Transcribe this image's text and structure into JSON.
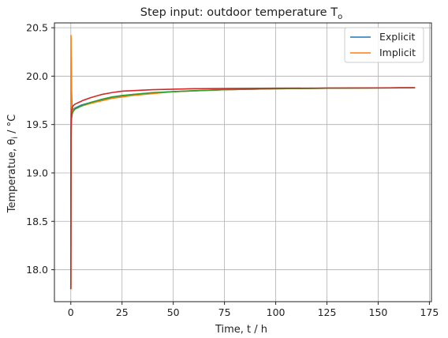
{
  "chart_data": {
    "type": "line",
    "title": "Step input: outdoor temperature T",
    "title_subscript": "o",
    "xlabel": "Time, t / h",
    "ylabel": "Temperatue, θ",
    "ylabel_subscript": "i",
    "ylabel_unit": " / °C",
    "xlim": [
      -8,
      176
    ],
    "ylim": [
      17.67,
      20.55
    ],
    "xticks": [
      0,
      25,
      50,
      75,
      100,
      125,
      150,
      175
    ],
    "yticks": [
      18.0,
      18.5,
      19.0,
      19.5,
      20.0,
      20.5
    ],
    "xtick_labels": [
      "0",
      "25",
      "50",
      "75",
      "100",
      "125",
      "150",
      "175"
    ],
    "ytick_labels": [
      "18.0",
      "18.5",
      "19.0",
      "19.5",
      "20.0",
      "20.5"
    ],
    "grid": true,
    "legend": {
      "placement": "top-right",
      "entries": [
        {
          "label": "Explicit",
          "color": "#1f77b4"
        },
        {
          "label": "Implicit",
          "color": "#ff7f0e"
        }
      ]
    },
    "series": [
      {
        "name": "Explicit",
        "color": "#1f77b4",
        "x": [
          0,
          0.05,
          0.1,
          0.2,
          0.3,
          0.5,
          0.7,
          1,
          1.5,
          2,
          5,
          10,
          20,
          30,
          50,
          75,
          100,
          125,
          150,
          168
        ],
        "y": [
          17.8,
          18.9,
          19.6,
          20.2,
          19.9,
          19.75,
          19.68,
          19.65,
          19.66,
          19.67,
          19.7,
          19.73,
          19.78,
          19.81,
          19.84,
          19.86,
          19.87,
          19.875,
          19.878,
          19.88
        ]
      },
      {
        "name": "Implicit",
        "color": "#ff7f0e",
        "x": [
          0,
          0.05,
          0.1,
          0.2,
          0.3,
          0.5,
          0.7,
          1,
          1.5,
          2,
          5,
          10,
          20,
          30,
          50,
          75,
          100,
          125,
          150,
          168
        ],
        "y": [
          17.8,
          19.5,
          20.42,
          20.1,
          19.85,
          19.72,
          19.66,
          19.64,
          19.65,
          19.66,
          19.69,
          19.72,
          19.77,
          19.8,
          19.84,
          19.86,
          19.87,
          19.875,
          19.878,
          19.88
        ]
      },
      {
        "color": "#2ca02c",
        "x": [
          0,
          0.1,
          0.3,
          0.6,
          1,
          2,
          4,
          6,
          10,
          15,
          20,
          25,
          30,
          40,
          50,
          60,
          75,
          100,
          125,
          150,
          168
        ],
        "y": [
          17.8,
          19.3,
          19.55,
          19.6,
          19.63,
          19.66,
          19.68,
          19.7,
          19.73,
          19.76,
          19.785,
          19.8,
          19.81,
          19.83,
          19.84,
          19.85,
          19.86,
          19.87,
          19.875,
          19.878,
          19.88
        ]
      },
      {
        "color": "#d62728",
        "x": [
          0,
          0.1,
          0.3,
          0.6,
          1,
          2,
          4,
          6,
          10,
          15,
          20,
          25,
          30,
          40,
          50,
          60,
          75,
          100,
          125,
          150,
          168
        ],
        "y": [
          17.8,
          19.45,
          19.62,
          19.67,
          19.69,
          19.71,
          19.73,
          19.75,
          19.78,
          19.81,
          19.83,
          19.845,
          19.85,
          19.86,
          19.865,
          19.87,
          19.872,
          19.875,
          19.877,
          19.879,
          19.88
        ]
      }
    ]
  }
}
